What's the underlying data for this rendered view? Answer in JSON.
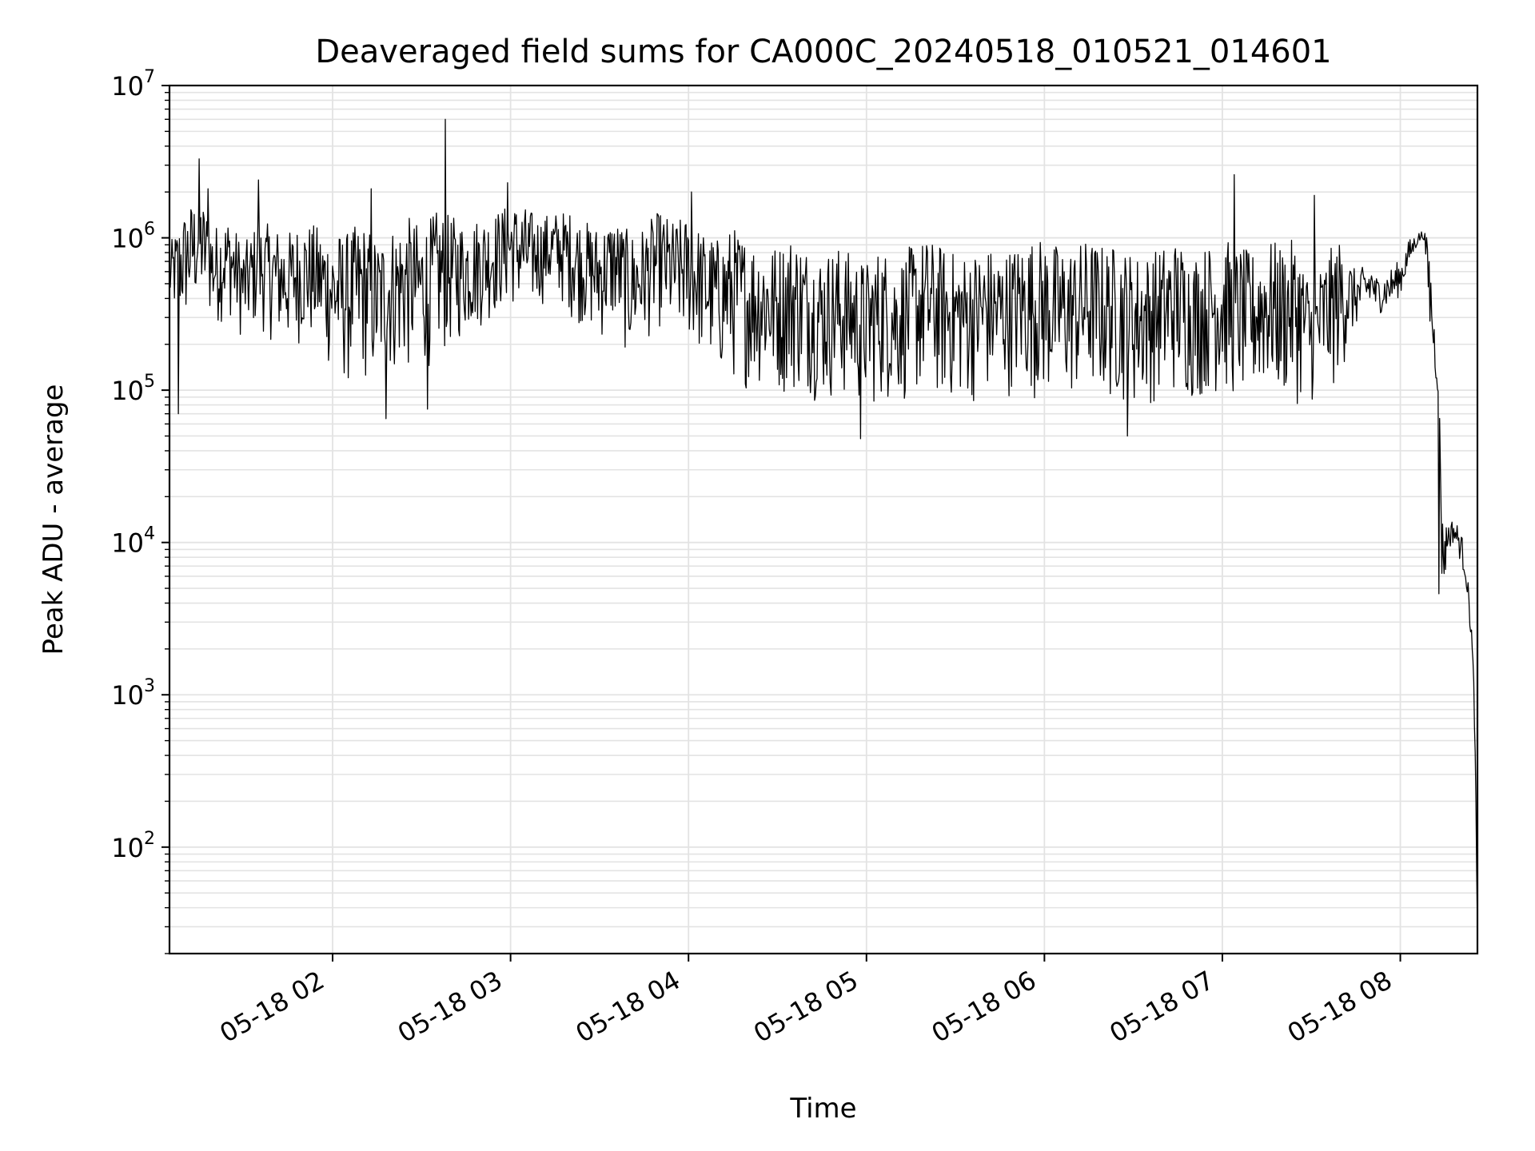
{
  "chart_data": {
    "type": "line",
    "title": "Deaveraged field sums for CA000C_20240518_010521_014601",
    "xlabel": "Time",
    "ylabel": "Peak ADU - average",
    "y_scale": "log",
    "ylim": [
      20,
      10000000
    ],
    "xlim": [
      "2024-05-18 01:05",
      "2024-05-18 08:26"
    ],
    "grid": true,
    "x_ticks": [
      {
        "value": "2024-05-18 02:00",
        "label": "05-18 02"
      },
      {
        "value": "2024-05-18 03:00",
        "label": "05-18 03"
      },
      {
        "value": "2024-05-18 04:00",
        "label": "05-18 04"
      },
      {
        "value": "2024-05-18 05:00",
        "label": "05-18 05"
      },
      {
        "value": "2024-05-18 06:00",
        "label": "05-18 06"
      },
      {
        "value": "2024-05-18 07:00",
        "label": "05-18 07"
      },
      {
        "value": "2024-05-18 08:00",
        "label": "05-18 08"
      }
    ],
    "y_ticks": [
      {
        "value": 100,
        "base": "10",
        "exp": "2"
      },
      {
        "value": 1000,
        "base": "10",
        "exp": "3"
      },
      {
        "value": 10000,
        "base": "10",
        "exp": "4"
      },
      {
        "value": 100000,
        "base": "10",
        "exp": "5"
      },
      {
        "value": 1000000,
        "base": "10",
        "exp": "6"
      },
      {
        "value": 10000000,
        "base": "10",
        "exp": "7"
      }
    ],
    "line_color": "#000000",
    "grid_color": "#e3e3e3",
    "series": [
      {
        "x": [
          "2024-05-18 01:05",
          "2024-05-18 01:10",
          "2024-05-18 01:15",
          "2024-05-18 01:20",
          "2024-05-18 01:25",
          "2024-05-18 01:30",
          "2024-05-18 01:35",
          "2024-05-18 01:40",
          "2024-05-18 01:45",
          "2024-05-18 01:50",
          "2024-05-18 01:55",
          "2024-05-18 02:00",
          "2024-05-18 02:05",
          "2024-05-18 02:10",
          "2024-05-18 02:15",
          "2024-05-18 02:20",
          "2024-05-18 02:25",
          "2024-05-18 02:30",
          "2024-05-18 02:35",
          "2024-05-18 02:40",
          "2024-05-18 02:45",
          "2024-05-18 02:50",
          "2024-05-18 02:55",
          "2024-05-18 03:00",
          "2024-05-18 03:05",
          "2024-05-18 03:10",
          "2024-05-18 03:15",
          "2024-05-18 03:20",
          "2024-05-18 03:25",
          "2024-05-18 03:30",
          "2024-05-18 03:35",
          "2024-05-18 03:40",
          "2024-05-18 03:45",
          "2024-05-18 03:50",
          "2024-05-18 03:55",
          "2024-05-18 04:00",
          "2024-05-18 04:05",
          "2024-05-18 04:10",
          "2024-05-18 04:15",
          "2024-05-18 04:20",
          "2024-05-18 04:25",
          "2024-05-18 04:30",
          "2024-05-18 04:35",
          "2024-05-18 04:40",
          "2024-05-18 04:45",
          "2024-05-18 04:50",
          "2024-05-18 04:55",
          "2024-05-18 05:00",
          "2024-05-18 05:05",
          "2024-05-18 05:10",
          "2024-05-18 05:15",
          "2024-05-18 05:20",
          "2024-05-18 05:25",
          "2024-05-18 05:30",
          "2024-05-18 05:35",
          "2024-05-18 05:40",
          "2024-05-18 05:45",
          "2024-05-18 05:50",
          "2024-05-18 05:55",
          "2024-05-18 06:00",
          "2024-05-18 06:05",
          "2024-05-18 06:10",
          "2024-05-18 06:15",
          "2024-05-18 06:20",
          "2024-05-18 06:25",
          "2024-05-18 06:30",
          "2024-05-18 06:35",
          "2024-05-18 06:40",
          "2024-05-18 06:45",
          "2024-05-18 06:50",
          "2024-05-18 06:55",
          "2024-05-18 07:00",
          "2024-05-18 07:05",
          "2024-05-18 07:10",
          "2024-05-18 07:15",
          "2024-05-18 07:20",
          "2024-05-18 07:25",
          "2024-05-18 07:30",
          "2024-05-18 07:35",
          "2024-05-18 07:40",
          "2024-05-18 07:45",
          "2024-05-18 07:50",
          "2024-05-18 07:55",
          "2024-05-18 08:00",
          "2024-05-18 08:03",
          "2024-05-18 08:06",
          "2024-05-18 08:08",
          "2024-05-18 08:10",
          "2024-05-18 08:12",
          "2024-05-18 08:13",
          "2024-05-18 08:14",
          "2024-05-18 08:15",
          "2024-05-18 08:16",
          "2024-05-18 08:18",
          "2024-05-18 08:20",
          "2024-05-18 08:22",
          "2024-05-18 08:24",
          "2024-05-18 08:25",
          "2024-05-18 08:26"
        ],
        "y": [
          500000,
          700000,
          1200000,
          600000,
          800000,
          450000,
          650000,
          700000,
          500000,
          750000,
          600000,
          550000,
          400000,
          500000,
          450000,
          600000,
          500000,
          650000,
          700000,
          600000,
          800000,
          750000,
          900000,
          1000000,
          800000,
          900000,
          1100000,
          850000,
          700000,
          650000,
          750000,
          600000,
          700000,
          800000,
          650000,
          700000,
          500000,
          450000,
          400000,
          350000,
          300000,
          280000,
          250000,
          220000,
          200000,
          180000,
          160000,
          150000,
          170000,
          200000,
          220000,
          250000,
          230000,
          210000,
          200000,
          180000,
          200000,
          220000,
          250000,
          230000,
          210000,
          200000,
          250000,
          220000,
          200000,
          180000,
          200000,
          230000,
          250000,
          220000,
          240000,
          260000,
          230000,
          200000,
          250000,
          230000,
          200000,
          150000,
          180000,
          250000,
          350000,
          400000,
          450000,
          550000,
          800000,
          1000000,
          1050000,
          500000,
          150000,
          100000,
          12000,
          9000,
          11000,
          12000,
          10000,
          7000,
          2500,
          800,
          30
        ],
        "upper": [
          900000,
          1500000,
          2000000,
          1200000,
          1400000,
          900000,
          1300000,
          1200000,
          1100000,
          1300000,
          1200000,
          1100000,
          1100000,
          1300000,
          1000000,
          1200000,
          1400000,
          1200000,
          1500000,
          1400000,
          1300000,
          1400000,
          1500000,
          1700000,
          1600000,
          1400000,
          1500000,
          1500000,
          1300000,
          1200000,
          1400000,
          1100000,
          1200000,
          1500000,
          1300000,
          1400000,
          1100000,
          1000000,
          1200000,
          1000000,
          1000000,
          900000,
          1100000,
          900000,
          800000,
          900000,
          800000,
          700000,
          900000,
          700000,
          900000,
          1000000,
          900000,
          800000,
          800000,
          900000,
          800000,
          900000,
          1000000,
          1000000,
          900000,
          900000,
          1000000,
          900000,
          900000,
          800000,
          800000,
          900000,
          1000000,
          800000,
          900000,
          1000000,
          900000,
          800000,
          1000000,
          900000,
          1000000,
          500000,
          800000,
          1000000,
          600000,
          700000,
          700000,
          800000,
          1000000,
          1100000,
          1100000,
          800000,
          200000,
          110000,
          15000,
          13000,
          14000,
          14000,
          13000,
          9000,
          3000,
          1000,
          40
        ],
        "lower": [
          300000,
          250000,
          350000,
          250000,
          300000,
          200000,
          250000,
          200000,
          180000,
          200000,
          180000,
          120000,
          100000,
          110000,
          100000,
          120000,
          120000,
          130000,
          150000,
          180000,
          220000,
          250000,
          300000,
          350000,
          300000,
          350000,
          400000,
          300000,
          250000,
          200000,
          250000,
          150000,
          200000,
          250000,
          200000,
          200000,
          150000,
          120000,
          110000,
          100000,
          100000,
          90000,
          90000,
          90000,
          80000,
          80000,
          80000,
          70000,
          80000,
          80000,
          80000,
          90000,
          80000,
          80000,
          80000,
          80000,
          90000,
          90000,
          90000,
          80000,
          80000,
          80000,
          90000,
          80000,
          80000,
          70000,
          80000,
          80000,
          90000,
          80000,
          90000,
          90000,
          80000,
          80000,
          90000,
          80000,
          80000,
          80000,
          80000,
          120000,
          250000,
          300000,
          350000,
          400000,
          600000,
          900000,
          900000,
          200000,
          100000,
          80000,
          5000,
          5000,
          8000,
          9000,
          7000,
          5000,
          2000,
          500,
          20
        ],
        "spikes": [
          {
            "x": "2024-05-18 01:08",
            "y": 70000
          },
          {
            "x": "2024-05-18 01:15",
            "y": 3300000
          },
          {
            "x": "2024-05-18 01:18",
            "y": 2100000
          },
          {
            "x": "2024-05-18 01:35",
            "y": 2400000
          },
          {
            "x": "2024-05-18 02:13",
            "y": 2100000
          },
          {
            "x": "2024-05-18 02:18",
            "y": 65000
          },
          {
            "x": "2024-05-18 02:32",
            "y": 75000
          },
          {
            "x": "2024-05-18 02:38",
            "y": 6000000
          },
          {
            "x": "2024-05-18 02:59",
            "y": 2300000
          },
          {
            "x": "2024-05-18 04:01",
            "y": 2000000
          },
          {
            "x": "2024-05-18 04:58",
            "y": 48000
          },
          {
            "x": "2024-05-18 06:28",
            "y": 50000
          },
          {
            "x": "2024-05-18 07:04",
            "y": 2600000
          },
          {
            "x": "2024-05-18 07:31",
            "y": 1900000
          },
          {
            "x": "2024-05-18 08:13",
            "y": 4600
          }
        ]
      }
    ]
  }
}
